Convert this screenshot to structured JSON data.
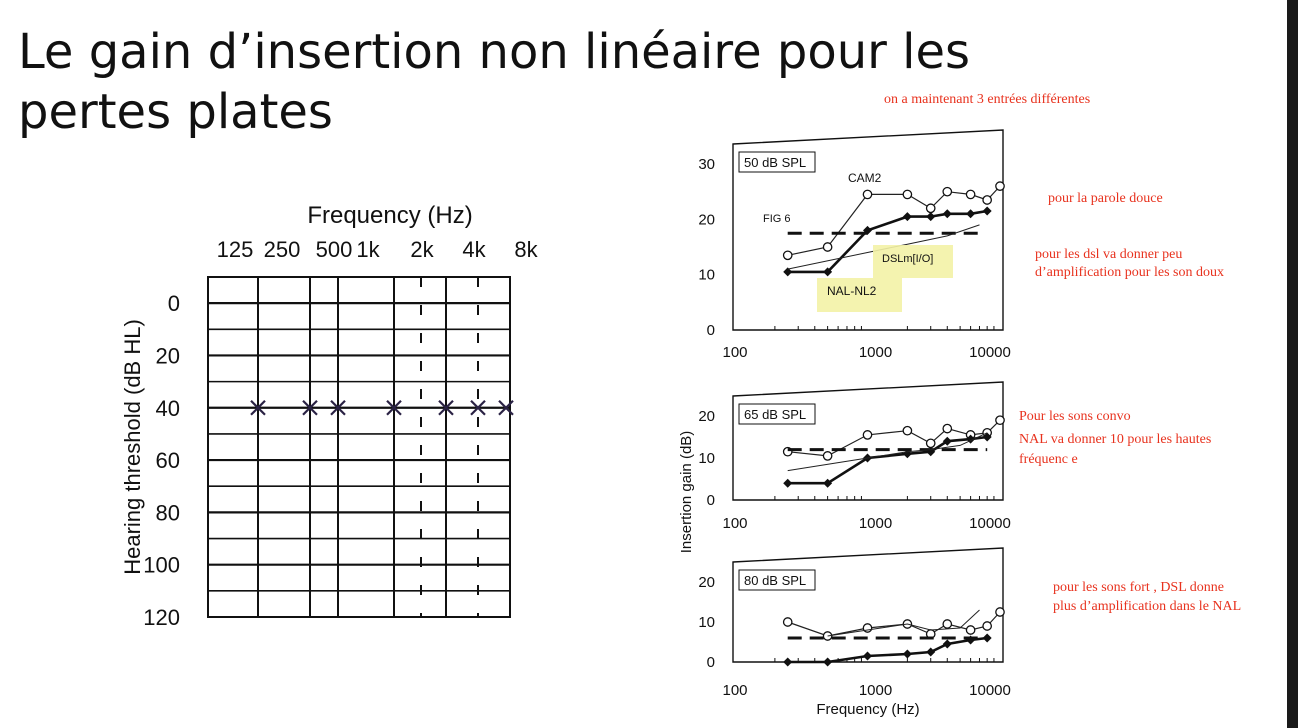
{
  "slide": {
    "title": "Le gain d’insertion non linéaire pour les pertes plates"
  },
  "notes": {
    "top": "on a maintenant 3 entrées différentes",
    "soft": "pour la parole douce",
    "dsl_soft_1": "pour les dsl va donner peu",
    "dsl_soft_2": "d’amplification pour  les son doux",
    "conv_1": "Pour les sons convo",
    "conv_2": "NAL va donner 10 pour les hautes",
    "conv_3": "fréquenc e",
    "loud_1": "pour les sons fort , DSL donne",
    "loud_2": "plus d’amplification dans le NAL"
  },
  "colors": {
    "note_red": "#e8321e",
    "highlight": "#f3f2a6",
    "ink": "#111111"
  },
  "chart_data": [
    {
      "type": "scatter",
      "title": "Frequency (Hz)",
      "xlabel": "Frequency (Hz)",
      "ylabel": "Hearing threshold (dB HL)",
      "x_ticks": [
        "125",
        "250",
        "500",
        "1k",
        "2k",
        "4k",
        "8k"
      ],
      "y_ticks": [
        "0",
        "20",
        "40",
        "60",
        "80",
        "100",
        "120"
      ],
      "ylim": [
        120,
        0
      ],
      "series": [
        {
          "marker": "×",
          "x": [
            "250",
            "500",
            "1k",
            "2k",
            "4k",
            "6k",
            "8k"
          ],
          "y": [
            40,
            40,
            40,
            40,
            40,
            40,
            40
          ]
        }
      ]
    },
    {
      "type": "line",
      "ylabel": "Insertion gain (dB)",
      "xlabel": "Frequency (Hz)",
      "x_tick_labels": [
        "100",
        "1000",
        "10000"
      ],
      "x_scale": "log",
      "panels": [
        {
          "label": "50 dB SPL",
          "ylim": [
            0,
            30
          ],
          "y_ticks": [
            "0",
            "10",
            "20",
            "30"
          ],
          "annotations": [
            "CAM2",
            "FIG 6",
            "DSLm[I/O]",
            "NAL-NL2"
          ],
          "series": [
            {
              "name": "CAM2",
              "style": "open-circles",
              "x": [
                250,
                500,
                1000,
                2000,
                3000,
                4000,
                6000,
                8000,
                10000
              ],
              "y": [
                13.5,
                15,
                24.5,
                24.5,
                22,
                25,
                24.5,
                23.5,
                26
              ]
            },
            {
              "name": "NAL-NL2",
              "style": "filled-diamonds",
              "x": [
                250,
                500,
                1000,
                2000,
                3000,
                4000,
                6000,
                8000
              ],
              "y": [
                10.5,
                10.5,
                18,
                20.5,
                20.5,
                21,
                21,
                21.5
              ]
            },
            {
              "name": "FIG 6",
              "style": "dashed",
              "x": [
                250,
                7500
              ],
              "y": [
                17.5,
                17.5
              ]
            },
            {
              "name": "DSLm[I/O]",
              "style": "thin",
              "x": [
                250,
                1000,
                2000,
                4000,
                7000
              ],
              "y": [
                11,
                14,
                15.5,
                17,
                19
              ]
            }
          ]
        },
        {
          "label": "65 dB SPL",
          "ylim": [
            0,
            20
          ],
          "y_ticks": [
            "0",
            "10",
            "20"
          ],
          "series": [
            {
              "style": "open-circles",
              "x": [
                250,
                500,
                1000,
                2000,
                3000,
                4000,
                6000,
                8000,
                10000
              ],
              "y": [
                11.5,
                10.5,
                15.5,
                16.5,
                13.5,
                17,
                15.5,
                16,
                19
              ]
            },
            {
              "style": "filled-diamonds",
              "x": [
                250,
                500,
                1000,
                2000,
                3000,
                4000,
                6000,
                8000
              ],
              "y": [
                4,
                4,
                10,
                11,
                11.5,
                14,
                14.5,
                15
              ]
            },
            {
              "style": "dashed",
              "x": [
                250,
                8000
              ],
              "y": [
                12,
                12
              ]
            },
            {
              "style": "thin",
              "x": [
                250,
                1000,
                2000,
                3000,
                5000,
                8000
              ],
              "y": [
                7,
                10,
                11.5,
                12,
                13,
                16
              ]
            }
          ]
        },
        {
          "label": "80 dB SPL",
          "ylim": [
            0,
            20
          ],
          "y_ticks": [
            "0",
            "10",
            "20"
          ],
          "series": [
            {
              "style": "open-circles",
              "x": [
                250,
                500,
                1000,
                2000,
                3000,
                4000,
                6000,
                8000,
                10000
              ],
              "y": [
                10,
                6.5,
                8.5,
                9.5,
                7,
                9.5,
                8,
                9,
                12.5
              ]
            },
            {
              "style": "filled-diamonds",
              "x": [
                250,
                500,
                1000,
                2000,
                3000,
                4000,
                6000,
                8000
              ],
              "y": [
                0,
                0,
                1.5,
                2,
                2.5,
                4.5,
                5.5,
                6
              ]
            },
            {
              "style": "dashed",
              "x": [
                250,
                8000
              ],
              "y": [
                6,
                6
              ]
            },
            {
              "style": "thin",
              "x": [
                500,
                2000,
                3000,
                5000,
                7000
              ],
              "y": [
                6.5,
                9.5,
                8,
                8.5,
                13
              ]
            }
          ]
        }
      ]
    }
  ]
}
